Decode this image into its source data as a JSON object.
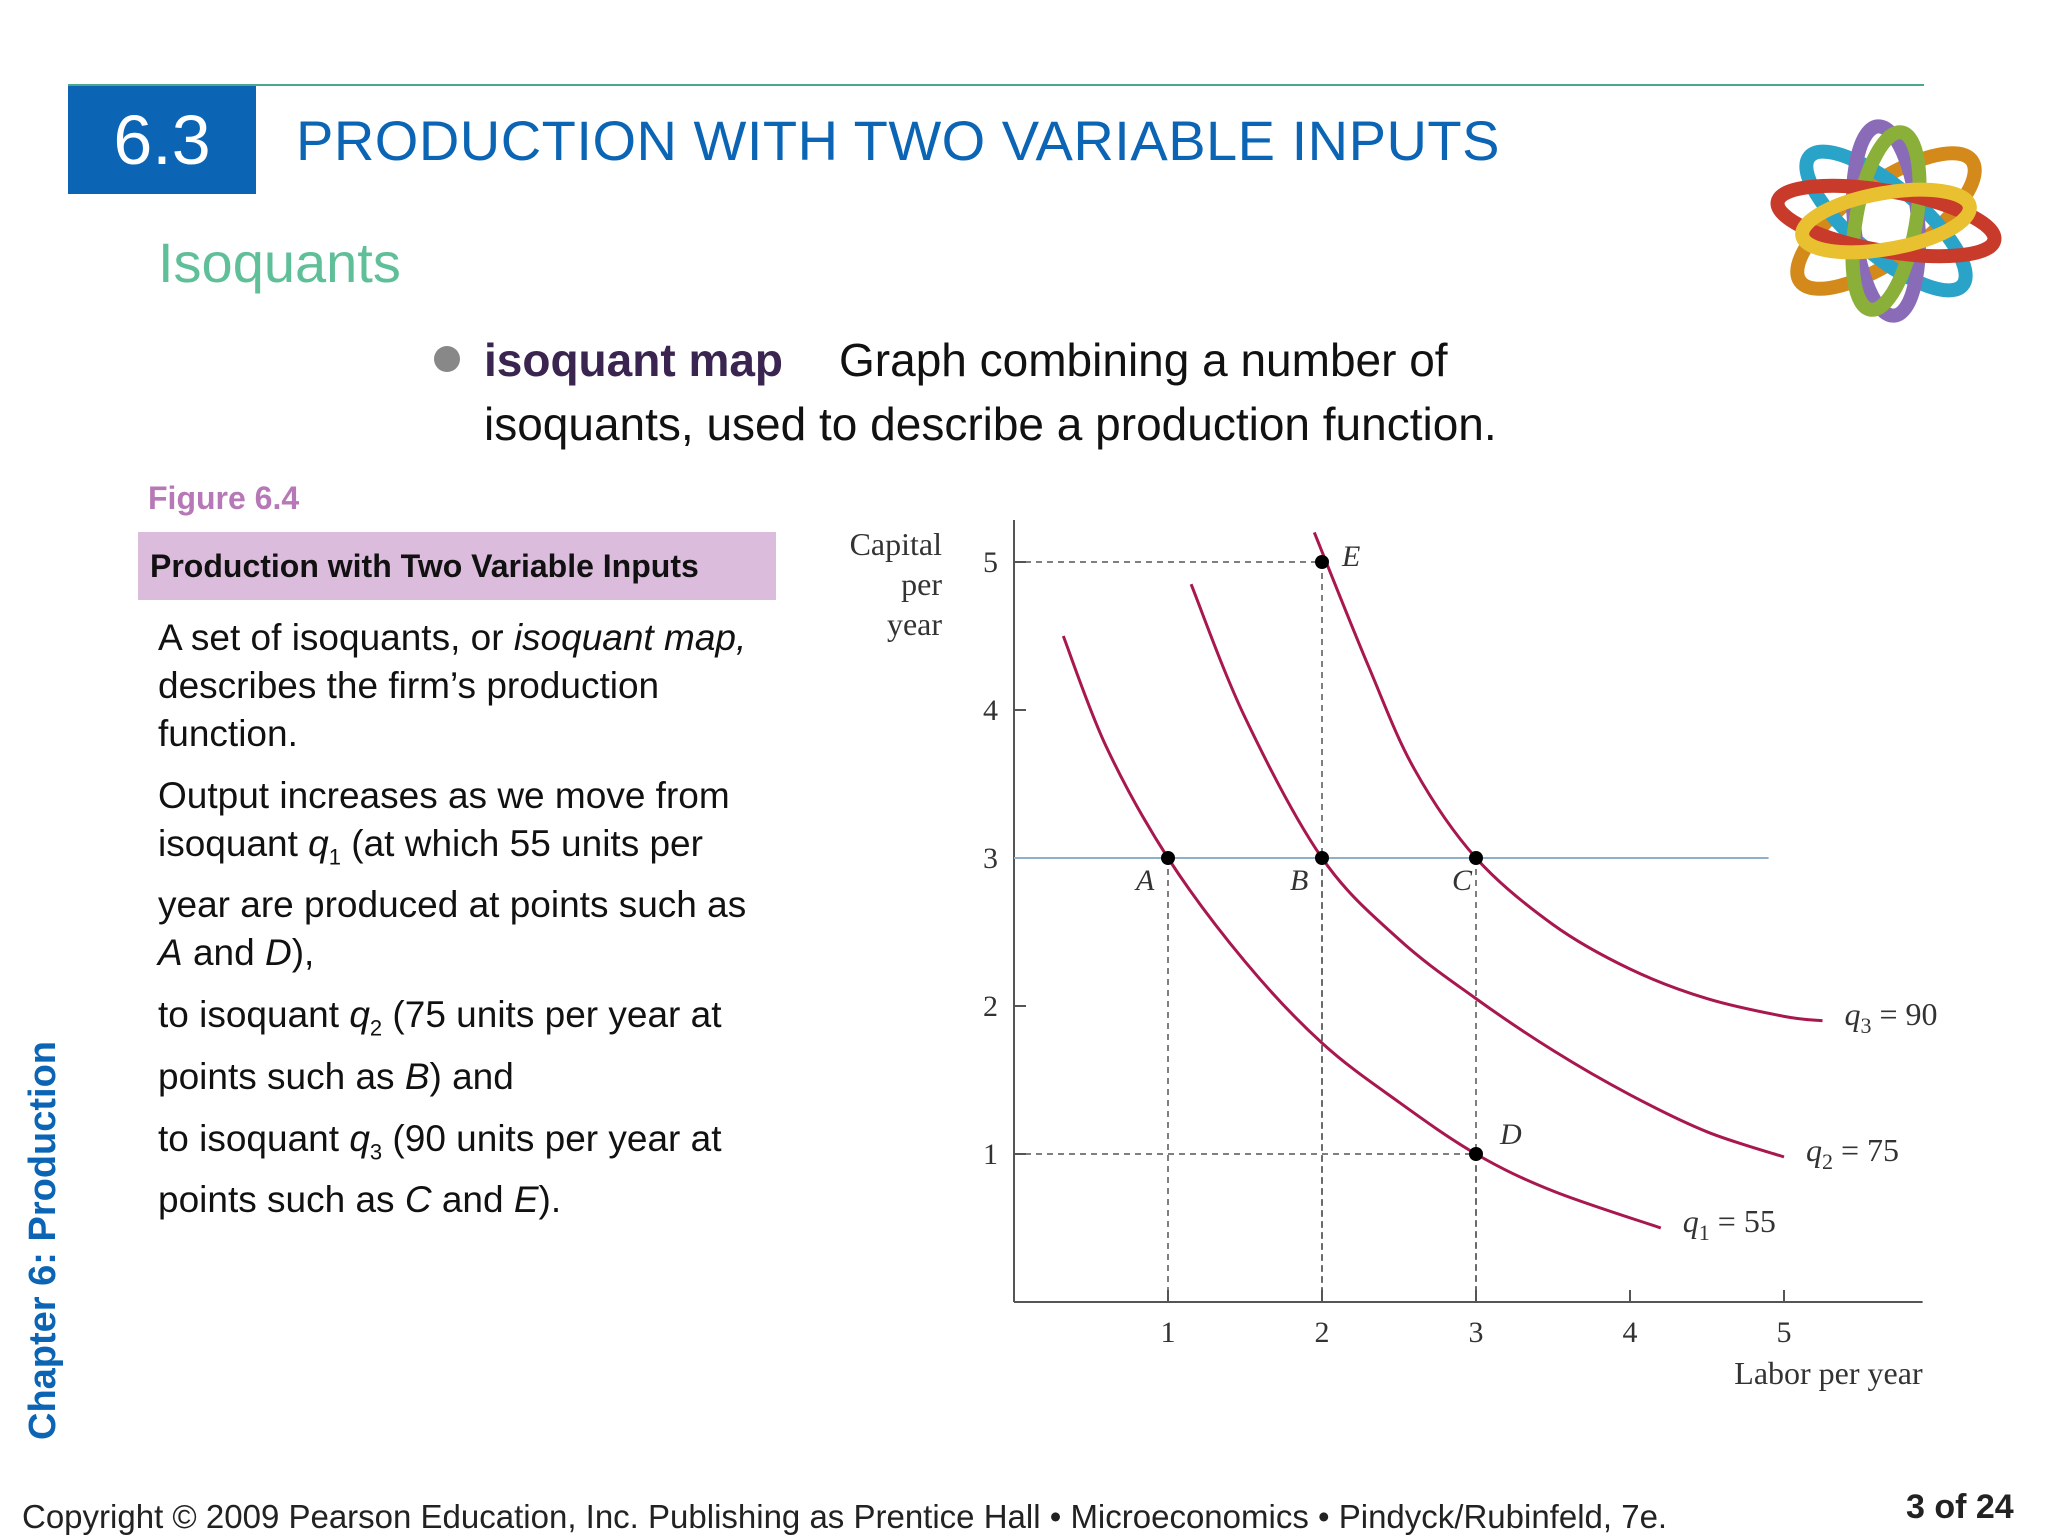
{
  "header": {
    "section_number": "6.3",
    "section_title": "PRODUCTION WITH TWO VARIABLE INPUTS",
    "subtitle": "Isoquants"
  },
  "bullet": {
    "term": "isoquant map",
    "definition_line1": "Graph combining a number of",
    "definition_line2": "isoquants, used to describe a production function."
  },
  "figure": {
    "label": "Figure 6.4",
    "title": "Production with Two Variable Inputs",
    "description": {
      "p1_a": "A set of isoquants, or ",
      "p1_i": "isoquant map,",
      "p1_b": " describes the firm’s production function.",
      "p2_a": "Output increases as we move from isoquant ",
      "p2_q": "q",
      "p2_sub": "1",
      "p2_b": " (at which 55 units per year are produced at points such as ",
      "p2_A": "A",
      "p2_and": " and ",
      "p2_D": "D",
      "p2_c": "),",
      "p3_a": "to isoquant ",
      "p3_q": "q",
      "p3_sub": "2",
      "p3_b": " (75 units per year at points such as ",
      "p3_B": "B",
      "p3_c": ") and",
      "p4_a": "to isoquant ",
      "p4_q": "q",
      "p4_sub": "3",
      "p4_b": " (90 units per year at points such as ",
      "p4_C": "C",
      "p4_and": " and ",
      "p4_E": "E",
      "p4_c": ")."
    }
  },
  "chart_data": {
    "type": "line",
    "ylabel_lines": [
      "Capital",
      "per",
      "year"
    ],
    "xlabel": "Labor per year",
    "x_ticks": [
      "1",
      "2",
      "3",
      "4",
      "5"
    ],
    "y_ticks": [
      "1",
      "2",
      "3",
      "4",
      "5"
    ],
    "xlim": [
      0,
      5.9
    ],
    "ylim": [
      0,
      5.5
    ],
    "curve_color": "#a8174e",
    "series": [
      {
        "name": "q1 = 55",
        "label_base": "q",
        "label_sub": "1",
        "label_rest": " = 55",
        "points": [
          [
            0.32,
            4.5
          ],
          [
            0.6,
            3.75
          ],
          [
            1.0,
            3.0
          ],
          [
            1.5,
            2.3
          ],
          [
            2.0,
            1.75
          ],
          [
            2.5,
            1.35
          ],
          [
            3.0,
            1.0
          ],
          [
            3.5,
            0.75
          ],
          [
            4.2,
            0.5
          ]
        ]
      },
      {
        "name": "q2 = 75",
        "label_base": "q",
        "label_sub": "2",
        "label_rest": " = 75",
        "points": [
          [
            1.15,
            4.85
          ],
          [
            1.5,
            3.95
          ],
          [
            2.0,
            3.0
          ],
          [
            2.5,
            2.45
          ],
          [
            3.0,
            2.05
          ],
          [
            3.5,
            1.7
          ],
          [
            4.0,
            1.4
          ],
          [
            4.5,
            1.15
          ],
          [
            5.0,
            0.98
          ]
        ]
      },
      {
        "name": "q3 = 90",
        "label_base": "q",
        "label_sub": "3",
        "label_rest": " = 90",
        "points": [
          [
            1.95,
            5.2
          ],
          [
            2.3,
            4.3
          ],
          [
            2.6,
            3.6
          ],
          [
            3.0,
            3.0
          ],
          [
            3.5,
            2.55
          ],
          [
            4.0,
            2.25
          ],
          [
            4.5,
            2.05
          ],
          [
            5.0,
            1.93
          ],
          [
            5.25,
            1.9
          ]
        ]
      }
    ],
    "points": [
      {
        "label": "A",
        "x": 1,
        "y": 3
      },
      {
        "label": "B",
        "x": 2,
        "y": 3
      },
      {
        "label": "C",
        "x": 3,
        "y": 3
      },
      {
        "label": "D",
        "x": 3,
        "y": 1
      },
      {
        "label": "E",
        "x": 2,
        "y": 5
      }
    ],
    "horizontal_line_y": 3
  },
  "sidebar": {
    "chapter": "Chapter 6:  Production"
  },
  "footer": {
    "copyright": "Copyright © 2009 Pearson Education, Inc. Publishing as Prentice Hall  •  Microeconomics  •  Pindyck/Rubinfeld, 7e.",
    "page": "3 of 24"
  }
}
